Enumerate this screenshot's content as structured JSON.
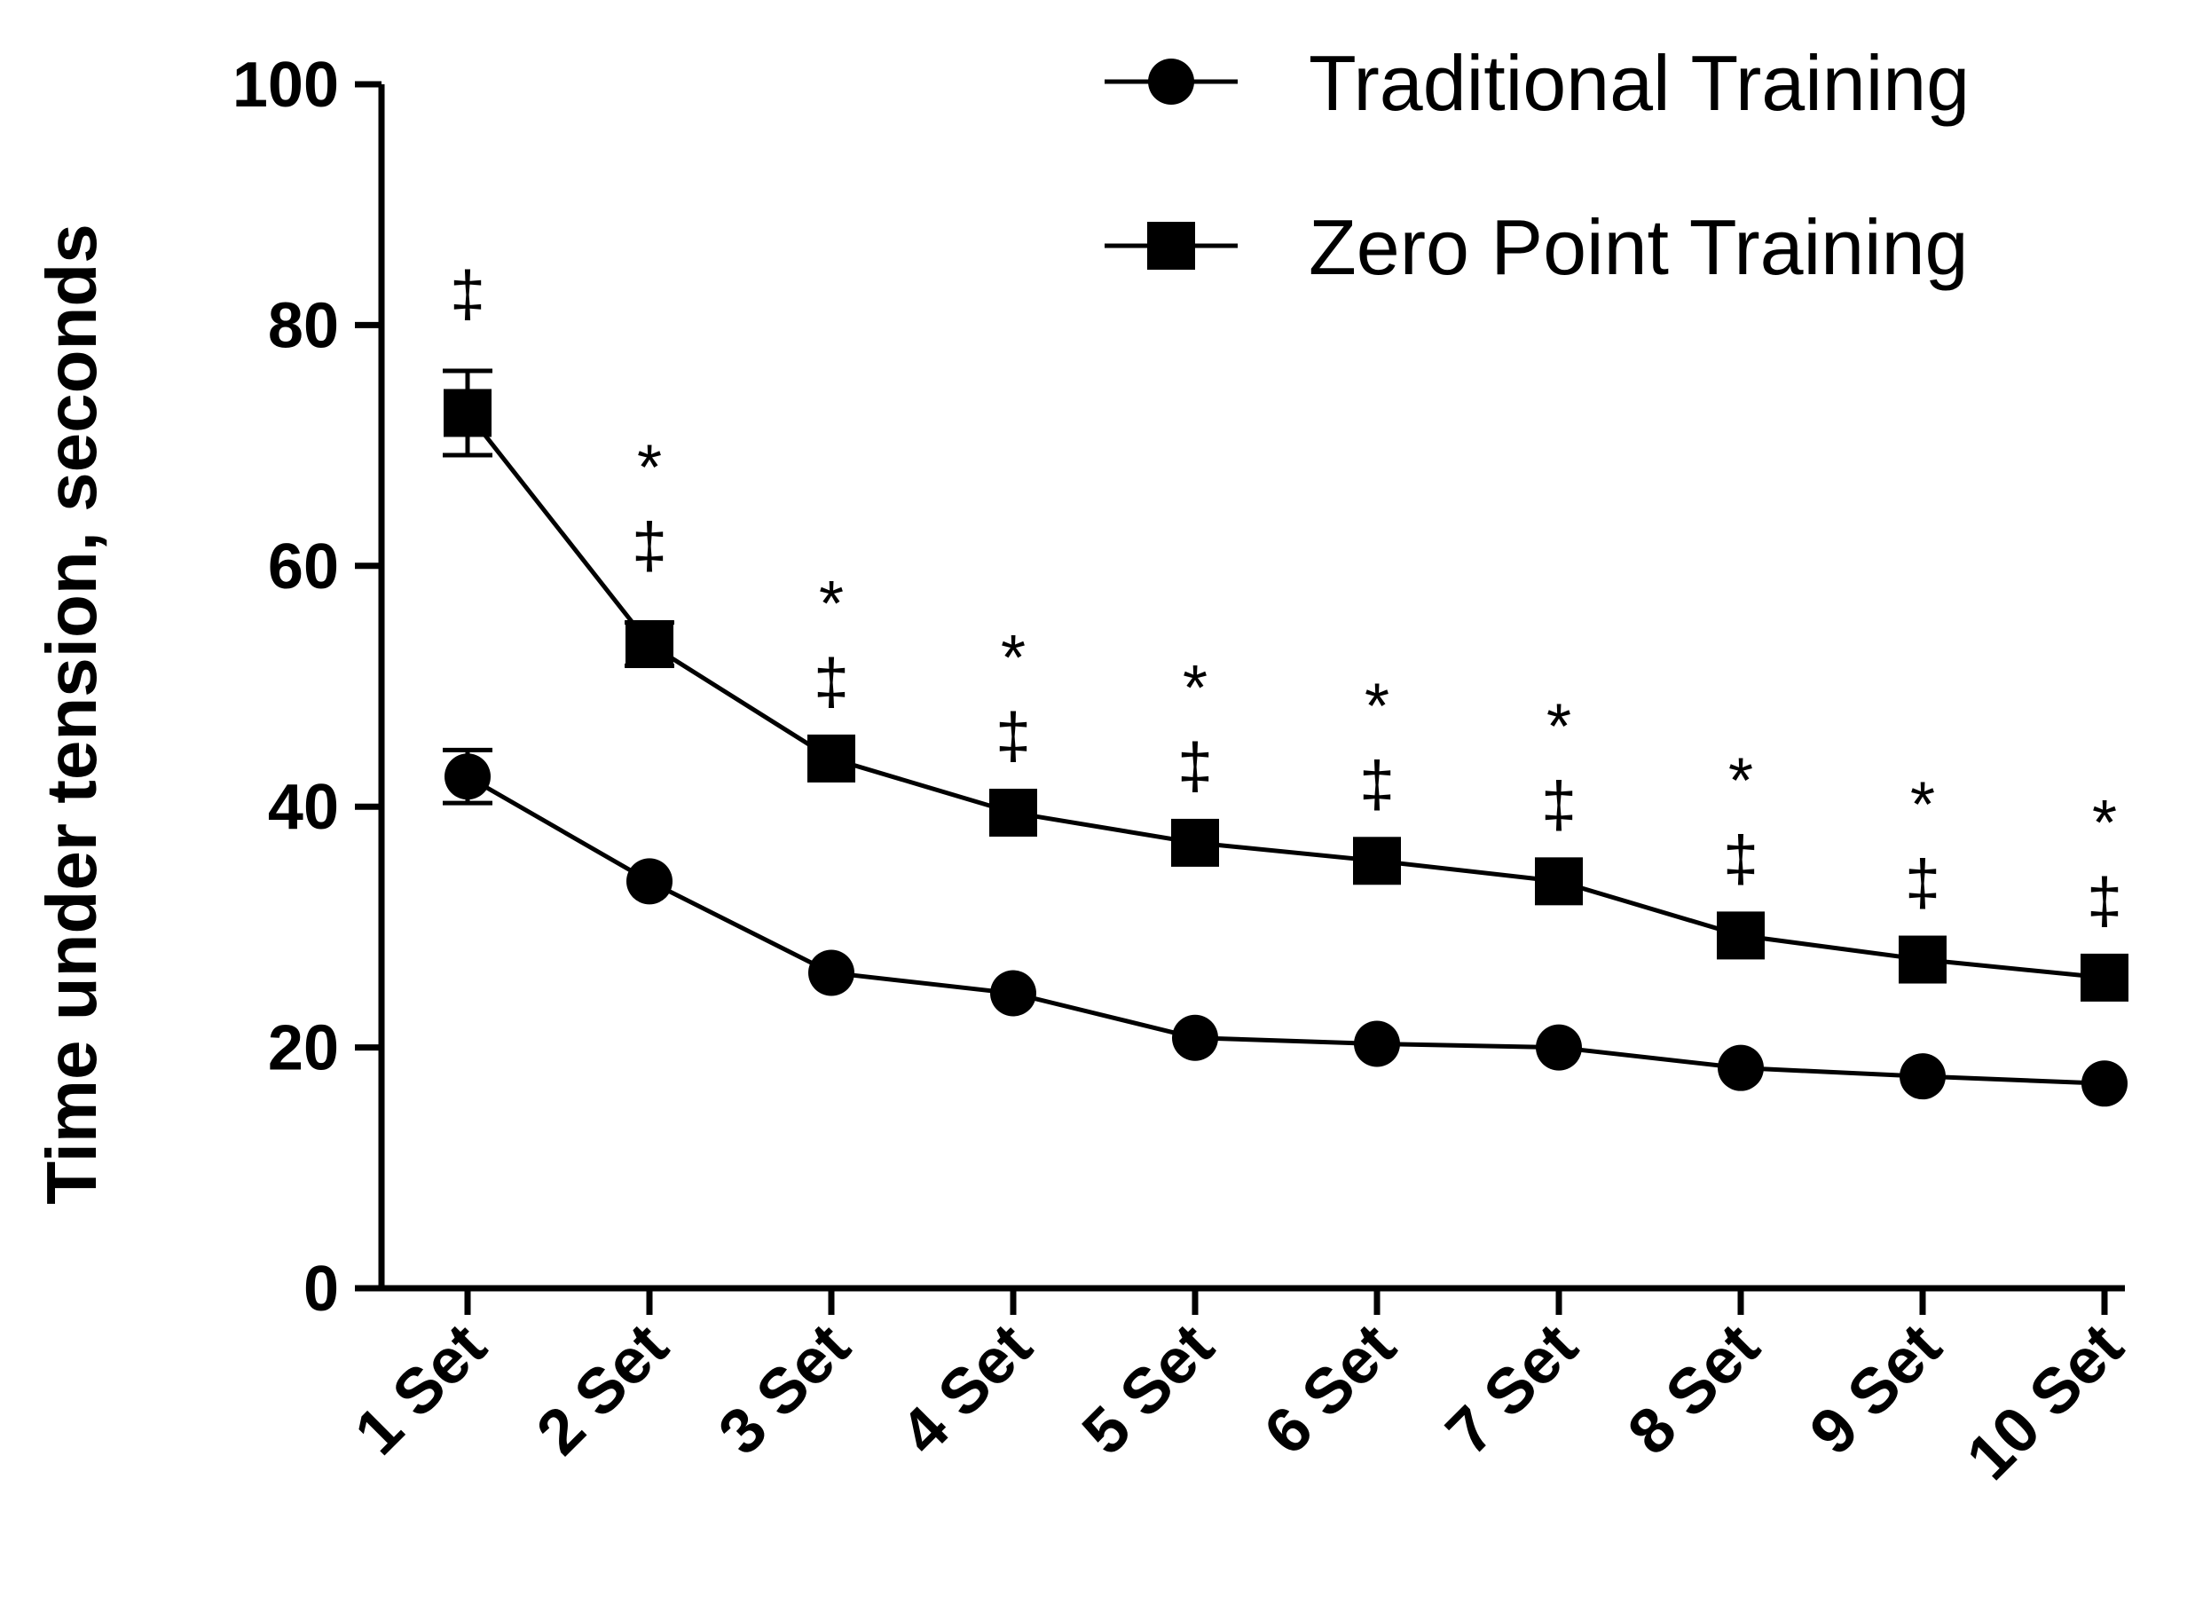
{
  "chart_data": {
    "type": "line",
    "title": "",
    "xlabel": "",
    "ylabel": "Time under tension, seconds",
    "ylim": [
      0,
      100
    ],
    "yticks": [
      "0",
      "20",
      "40",
      "60",
      "80",
      "100"
    ],
    "categories": [
      "1 Set",
      "2 Set",
      "3 Set",
      "4 Set",
      "5 Set",
      "6 Set",
      "7 Set",
      "8 Set",
      "9 Set",
      "10 Set"
    ],
    "series": [
      {
        "name": "Traditional Training",
        "marker": "circle",
        "values": [
          42.5,
          33.8,
          26.2,
          24.5,
          20.8,
          20.3,
          20.0,
          18.3,
          17.6,
          17.0
        ],
        "error": [
          2.2,
          0,
          0,
          0,
          0,
          0,
          0,
          0,
          0,
          0
        ]
      },
      {
        "name": "Zero Point Training",
        "marker": "square",
        "values": [
          72.7,
          53.5,
          44.0,
          39.5,
          37.0,
          35.5,
          33.8,
          29.3,
          27.3,
          25.8
        ],
        "error": [
          3.5,
          1.8,
          0,
          0,
          0,
          0,
          0,
          0,
          0,
          0
        ]
      }
    ],
    "annotations": {
      "dagger": [
        "‡",
        "‡",
        "‡",
        "‡",
        "‡",
        "‡",
        "‡",
        "‡",
        "‡",
        "‡"
      ],
      "star": [
        "",
        "*",
        "*",
        "*",
        "*",
        "*",
        "*",
        "*",
        "*",
        "*"
      ]
    },
    "legend_position": "top-right",
    "grid": false
  },
  "colors": {
    "ink": "#000000",
    "background": "#ffffff"
  }
}
